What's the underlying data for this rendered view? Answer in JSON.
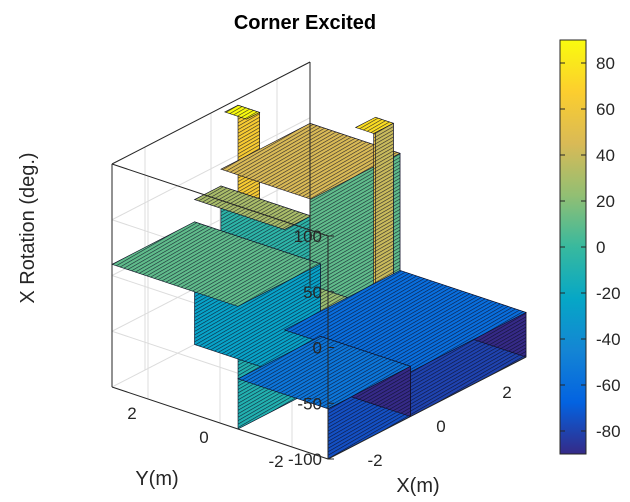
{
  "chart_data": {
    "type": "surface",
    "title": "Corner Excited",
    "xlabel": "X(m)",
    "ylabel": "Y(m)",
    "zlabel": "X Rotation (deg.)",
    "x_ticks": [
      "-2",
      "0",
      "2"
    ],
    "y_ticks": [
      "-2",
      "0",
      "2"
    ],
    "z_ticks": [
      "-100",
      "-50",
      "0",
      "50",
      "100"
    ],
    "xlim": [
      -3,
      3
    ],
    "ylim": [
      -3,
      3
    ],
    "zlim": [
      -100,
      100
    ],
    "grid": true,
    "colormap": "parula",
    "colorbar": {
      "ticks": [
        "-80",
        "-60",
        "-40",
        "-20",
        "0",
        "20",
        "40",
        "60",
        "80"
      ],
      "range": [
        -90,
        90
      ],
      "placement": "right"
    },
    "surface_regions": [
      {
        "description": "back-left plateau",
        "x": [
          -3,
          -0.5
        ],
        "y": [
          -0.5,
          3
        ],
        "z": 10
      },
      {
        "description": "back-middle plateau",
        "x": [
          -0.5,
          0.3
        ],
        "y": [
          0.5,
          3
        ],
        "z": 30
      },
      {
        "description": "back-right plateau",
        "x": [
          0.3,
          3
        ],
        "y": [
          0.5,
          3
        ],
        "z": 45
      },
      {
        "description": "front-left low floor",
        "x": [
          -3,
          -0.5
        ],
        "y": [
          -3,
          -0.5
        ],
        "z": -55
      },
      {
        "description": "front-right well",
        "x": [
          -0.5,
          3
        ],
        "y": [
          -3,
          0.5
        ],
        "z": -60
      },
      {
        "description": "corner spike",
        "x": [
          0.2,
          0.6
        ],
        "y": [
          2.2,
          2.8
        ],
        "z": 100
      },
      {
        "description": "right-edge spike",
        "x": [
          2.2,
          2.8
        ],
        "y": [
          0.5,
          1.0
        ],
        "z": 75
      }
    ],
    "colors": {
      "parula": [
        "#352a87",
        "#0363e1",
        "#1485d4",
        "#06a7c6",
        "#38b99e",
        "#92bf73",
        "#d9ba56",
        "#fcce2e",
        "#f9fb0e"
      ]
    }
  }
}
